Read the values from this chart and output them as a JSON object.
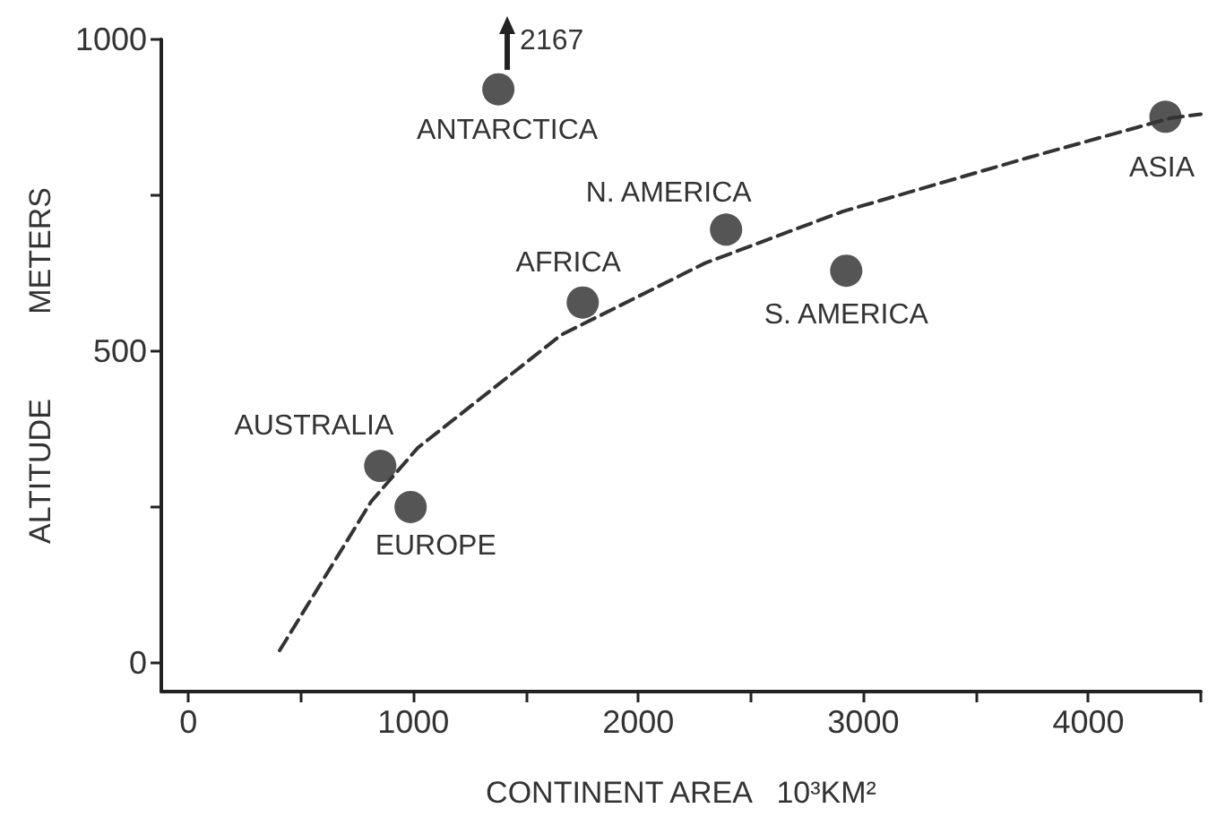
{
  "chart_data": {
    "type": "scatter",
    "xlabel": "CONTINENT AREA   10³KM²",
    "ylabel": "ALTITUDE          METERS",
    "xlim": [
      -120,
      4500
    ],
    "ylim": [
      -46,
      1000
    ],
    "xticks": [
      0,
      {
        "value": 500,
        "label": null
      },
      1000,
      {
        "value": 1500,
        "label": null
      },
      2000,
      {
        "value": 2500,
        "label": null
      },
      3000,
      {
        "value": 3500,
        "label": null
      },
      4000,
      {
        "value": 4500,
        "label": null
      }
    ],
    "yticks": [
      0,
      {
        "value": 250,
        "label": null
      },
      500,
      {
        "value": 750,
        "label": null
      },
      1000
    ],
    "series": [
      {
        "type": "scatter",
        "marker": "circle",
        "color": "#2b2b2b",
        "x": [
          1378,
          853,
          988,
          1753,
          2390,
          2924,
          4343
        ],
        "values": [
          920,
          316,
          250,
          578,
          695,
          629,
          876
        ]
      },
      {
        "type": "line",
        "marker": "none",
        "line_style": "dashed",
        "color": "#333333",
        "x": [
          406,
          813,
          1020,
          1657,
          2295,
          2908,
          3729,
          4367,
          4500
        ],
        "values": [
          20,
          259,
          345,
          526,
          641,
          724,
          810,
          874,
          880
        ]
      }
    ],
    "annotations": [
      {
        "text": "ANTARCTICA",
        "x": 1378,
        "y": 920
      },
      {
        "text": "AUSTRALIA",
        "x": 853,
        "y": 316
      },
      {
        "text": "EUROPE",
        "x": 988,
        "y": 250
      },
      {
        "text": "AFRICA",
        "x": 1753,
        "y": 578
      },
      {
        "text": "N. AMERICA",
        "x": 2390,
        "y": 695
      },
      {
        "text": "S. AMERICA",
        "x": 2924,
        "y": 629
      },
      {
        "text": "ASIA",
        "x": 4343,
        "y": 876
      },
      {
        "text": "2167",
        "x": 1378,
        "y": 920
      }
    ]
  }
}
